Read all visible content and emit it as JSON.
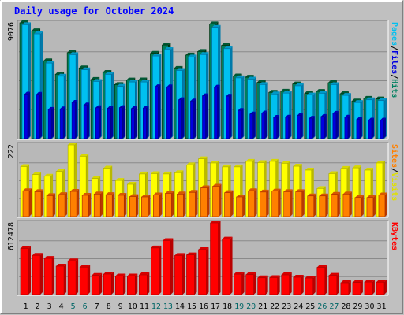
{
  "chart_data": {
    "type": "bar",
    "title": "Daily usage for October 2024",
    "categories": [
      "1",
      "2",
      "3",
      "4",
      "5",
      "6",
      "7",
      "8",
      "9",
      "10",
      "11",
      "12",
      "13",
      "14",
      "15",
      "16",
      "17",
      "18",
      "19",
      "20",
      "21",
      "22",
      "23",
      "24",
      "25",
      "26",
      "27",
      "28",
      "29",
      "30",
      "31"
    ],
    "weekend_days": [
      "5",
      "6",
      "12",
      "13",
      "19",
      "20",
      "26",
      "27"
    ],
    "colors": {
      "title": "#0000ff",
      "weekday_label": "#000000",
      "weekend_label": "#006666",
      "background": "#c0c0c0",
      "panel": "#b8b8b8",
      "hits": "#00805c",
      "files": "#00c0f0",
      "pages": "#0000e0",
      "visits": "#ffff00",
      "sites": "#ff8000",
      "kbytes": "#ff0000"
    },
    "panels": [
      {
        "id": "hits-files-pages",
        "max_label": "9076",
        "ymax": 9076,
        "legend": [
          {
            "text": "Pages",
            "color": "#00c0f0"
          },
          {
            "text": "/",
            "color": "#000000"
          },
          {
            "text": "Files",
            "color": "#0000e0"
          },
          {
            "text": "/",
            "color": "#000000"
          },
          {
            "text": "Hits",
            "color": "#008060"
          }
        ],
        "series": [
          {
            "name": "Hits",
            "values": [
              9076,
              8450,
              6100,
              5050,
              6740,
              5540,
              4640,
              5190,
              4240,
              4590,
              4600,
              6680,
              7340,
              5500,
              6550,
              6830,
              8990,
              7310,
              4910,
              4810,
              4400,
              3630,
              3710,
              4280,
              3540,
              3700,
              4380,
              3520,
              2950,
              3160,
              3110
            ]
          },
          {
            "name": "Files",
            "values": [
              8930,
              8210,
              5920,
              4890,
              6580,
              5390,
              4480,
              5040,
              4100,
              4440,
              4440,
              6480,
              6980,
              5340,
              6400,
              6590,
              8720,
              7050,
              4760,
              4660,
              4240,
              3500,
              3570,
              4140,
              3420,
              3560,
              4230,
              3390,
              2830,
              3040,
              2980
            ]
          },
          {
            "name": "Pages",
            "values": [
              3490,
              3470,
              2290,
              2330,
              2840,
              2640,
              2420,
              2390,
              2430,
              2360,
              2400,
              4070,
              4060,
              3050,
              2950,
              3360,
              4040,
              3330,
              2210,
              1930,
              2010,
              1670,
              1680,
              1820,
              1600,
              1740,
              1980,
              1680,
              1510,
              1450,
              1450
            ]
          }
        ]
      },
      {
        "id": "visits-sites",
        "max_label": "222",
        "ymax": 222,
        "legend": [
          {
            "text": "Sites",
            "color": "#ff8000"
          },
          {
            "text": "/",
            "color": "#000000"
          },
          {
            "text": "Visits",
            "color": "#e0e000"
          }
        ],
        "series": [
          {
            "name": "Visits",
            "values": [
              155,
              130,
              125,
              140,
              222,
              187,
              118,
              150,
              112,
              100,
              132,
              133,
              132,
              136,
              160,
              179,
              166,
              154,
              154,
              171,
              167,
              171,
              165,
              156,
              144,
              87,
              133,
              149,
              151,
              144,
              166
            ]
          },
          {
            "name": "Sites",
            "values": [
              80,
              77,
              65,
              68,
              78,
              66,
              70,
              68,
              66,
              62,
              61,
              67,
              72,
              70,
              75,
              89,
              94,
              74,
              61,
              80,
              76,
              79,
              77,
              77,
              64,
              64,
              69,
              70,
              59,
              59,
              67
            ]
          }
        ]
      },
      {
        "id": "kbytes",
        "max_label": "612478",
        "ymax": 612478,
        "legend": [
          {
            "text": "KBytes",
            "color": "#ff0000"
          }
        ],
        "series": [
          {
            "name": "KBytes",
            "values": [
              394000,
              335000,
              309000,
              242000,
              288000,
              234000,
              163000,
              175000,
              158000,
              158000,
              168000,
              398000,
              461000,
              334000,
              339000,
              384000,
              612478,
              474000,
              174000,
              170000,
              143000,
              145000,
              168000,
              148000,
              141000,
              232000,
              164000,
              101000,
              103000,
              107000,
              106000
            ]
          }
        ]
      }
    ]
  }
}
